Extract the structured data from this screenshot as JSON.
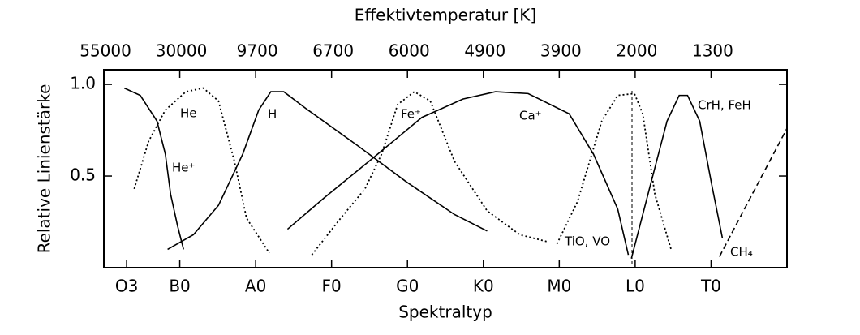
{
  "chart_data": {
    "type": "line",
    "title": "Effektivtemperatur [K]",
    "xlabel": "Spektraltyp",
    "ylabel": "Relative Linienstärke",
    "xlim": [
      0,
      9
    ],
    "ylim": [
      0,
      1.08
    ],
    "xticks": [
      {
        "value": 0.3,
        "label": "O3"
      },
      {
        "value": 1,
        "label": "B0"
      },
      {
        "value": 2,
        "label": "A0"
      },
      {
        "value": 3,
        "label": "F0"
      },
      {
        "value": 4,
        "label": "G0"
      },
      {
        "value": 5,
        "label": "K0"
      },
      {
        "value": 6,
        "label": "M0"
      },
      {
        "value": 7,
        "label": "L0"
      },
      {
        "value": 8,
        "label": "T0"
      }
    ],
    "x2ticks": [
      {
        "value": 0,
        "label": "55000"
      },
      {
        "value": 1,
        "label": "30000"
      },
      {
        "value": 2,
        "label": "9700"
      },
      {
        "value": 3,
        "label": "6700"
      },
      {
        "value": 4,
        "label": "6000"
      },
      {
        "value": 5,
        "label": "4900"
      },
      {
        "value": 6,
        "label": "3900"
      },
      {
        "value": 7,
        "label": "2000"
      },
      {
        "value": 8,
        "label": "1300"
      }
    ],
    "yticks": [
      {
        "value": 0.5,
        "label": "0.5"
      },
      {
        "value": 1,
        "label": "1.0"
      }
    ],
    "series": [
      {
        "name": "He⁺",
        "color": "#000",
        "dash": "solid",
        "x": [
          0.27,
          0.48,
          0.7,
          0.81,
          0.88,
          0.97,
          1.05
        ],
        "values": [
          0.98,
          0.94,
          0.8,
          0.62,
          0.4,
          0.23,
          0.1
        ]
      },
      {
        "name": "He",
        "color": "#000",
        "dash": "dotted",
        "x": [
          0.4,
          0.59,
          0.81,
          1.08,
          1.31,
          1.51,
          1.72,
          1.88,
          2.18
        ],
        "values": [
          0.43,
          0.69,
          0.86,
          0.96,
          0.98,
          0.91,
          0.58,
          0.27,
          0.08
        ]
      },
      {
        "name": "H",
        "color": "#000",
        "dash": "solid",
        "x": [
          0.84,
          1.18,
          1.51,
          1.83,
          2.04,
          2.2,
          2.37,
          2.69,
          3.33,
          3.98,
          4.62,
          5.05
        ],
        "values": [
          0.1,
          0.18,
          0.34,
          0.62,
          0.86,
          0.96,
          0.96,
          0.86,
          0.67,
          0.47,
          0.29,
          0.2
        ]
      },
      {
        "name": "Fe⁺",
        "color": "#000",
        "dash": "dotted",
        "x": [
          2.74,
          3.12,
          3.44,
          3.66,
          3.87,
          4.09,
          4.3,
          4.62,
          5.05,
          5.48,
          5.86
        ],
        "values": [
          0.07,
          0.27,
          0.43,
          0.62,
          0.89,
          0.96,
          0.91,
          0.58,
          0.31,
          0.18,
          0.14
        ]
      },
      {
        "name": "Ca⁺",
        "color": "#000",
        "dash": "solid",
        "x": [
          2.42,
          2.9,
          3.55,
          4.19,
          4.73,
          5.16,
          5.59,
          6.13,
          6.45,
          6.77,
          6.91
        ],
        "values": [
          0.21,
          0.38,
          0.6,
          0.82,
          0.92,
          0.96,
          0.95,
          0.84,
          0.62,
          0.32,
          0.07
        ]
      },
      {
        "name": "TiO, VO",
        "color": "#000",
        "dash": "dotted",
        "x": [
          5.97,
          6.24,
          6.56,
          6.77,
          6.99,
          7.1,
          7.26,
          7.48
        ],
        "values": [
          0.13,
          0.36,
          0.8,
          0.94,
          0.95,
          0.84,
          0.4,
          0.09
        ]
      },
      {
        "name": "CrH, FeH",
        "color": "#000",
        "dash": "solid",
        "x": [
          6.95,
          7.2,
          7.42,
          7.58,
          7.69,
          7.85,
          8.01,
          8.15
        ],
        "values": [
          0.05,
          0.45,
          0.8,
          0.94,
          0.94,
          0.8,
          0.45,
          0.16
        ]
      },
      {
        "name": "CH₄",
        "color": "#000",
        "dash": "dashed",
        "x": [
          8.11,
          8.49,
          9
        ],
        "values": [
          0.06,
          0.36,
          0.76
        ]
      }
    ]
  }
}
